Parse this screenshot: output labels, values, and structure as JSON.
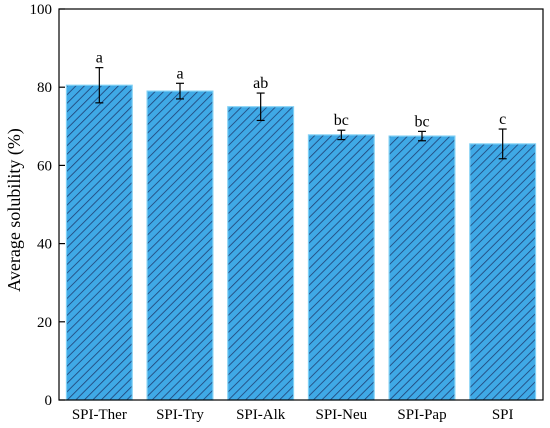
{
  "chart_data": {
    "type": "bar",
    "categories": [
      "SPI-Ther",
      "SPI-Try",
      "SPI-Alk",
      "SPI-Neu",
      "SPI-Pap",
      "SPI"
    ],
    "values": [
      80.5,
      79.0,
      75.0,
      67.8,
      67.5,
      65.5
    ],
    "errors": [
      4.5,
      2.0,
      3.5,
      1.2,
      1.2,
      3.8
    ],
    "annotations": [
      "a",
      "a",
      "ab",
      "bc",
      "bc",
      "c"
    ],
    "ylabel": "Average solubility (%)",
    "xlabel": "",
    "ylim": [
      0,
      100
    ],
    "yticks": [
      0,
      20,
      40,
      60,
      80,
      100
    ],
    "grid": false,
    "bar_color": "#3fa9e6",
    "hatch_color": "#1e3f73"
  }
}
